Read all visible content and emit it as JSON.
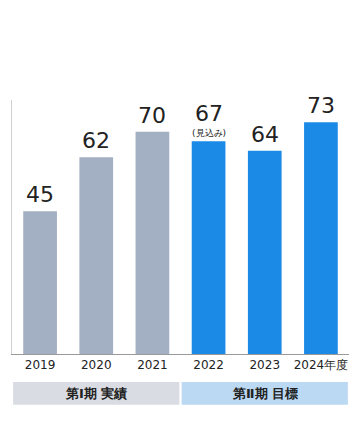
{
  "chart_data": {
    "type": "bar",
    "categories": [
      "2019",
      "2020",
      "2021",
      "2022",
      "2023",
      "2024年度"
    ],
    "values": [
      45,
      62,
      70,
      67,
      64,
      73
    ],
    "colors": [
      "#a3afc2",
      "#a3afc2",
      "#a3afc2",
      "#1a8ae6",
      "#1a8ae6",
      "#1a8ae6"
    ],
    "ylim": [
      0,
      80
    ],
    "data_labels": true,
    "tick_labels": "x",
    "grid": false,
    "annotations": [
      {
        "category": "2022",
        "text": "(見込み)"
      }
    ],
    "groups": [
      {
        "text": "第Ⅰ期 実績",
        "categories": [
          "2019",
          "2020",
          "2021"
        ]
      },
      {
        "text": "第Ⅱ期 目標",
        "categories": [
          "2022",
          "2023",
          "2024年度"
        ]
      }
    ]
  }
}
